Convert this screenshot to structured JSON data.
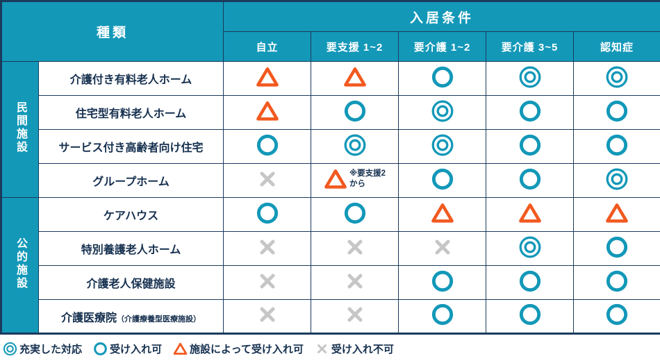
{
  "chart_data": {
    "type": "table",
    "header": {
      "type_label": "種類",
      "conditions_label": "入居条件",
      "condition_columns": [
        "自立",
        "要支援 1~2",
        "要介護 1~2",
        "要介護 3~5",
        "認知症"
      ]
    },
    "groups": [
      {
        "label": "民間施設",
        "row_span": 4
      },
      {
        "label": "公的施設",
        "row_span": 4
      }
    ],
    "rows": [
      {
        "name": "介護付き有料老人ホーム",
        "name_sub": "",
        "group": "民間施設",
        "cells": [
          "triangle",
          "triangle",
          "circle",
          "double-circle",
          "double-circle"
        ]
      },
      {
        "name": "住宅型有料老人ホーム",
        "name_sub": "",
        "group": "民間施設",
        "cells": [
          "triangle",
          "circle",
          "double-circle",
          "circle",
          "circle"
        ]
      },
      {
        "name": "サービス付き高齢者向け住宅",
        "name_sub": "",
        "group": "民間施設",
        "cells": [
          "circle",
          "double-circle",
          "double-circle",
          "circle",
          "circle"
        ]
      },
      {
        "name": "グループホーム",
        "name_sub": "",
        "group": "民間施設",
        "cells": [
          "cross",
          "triangle",
          "circle",
          "circle",
          "double-circle"
        ],
        "note": "※要支援2\nから",
        "note_col": 1
      },
      {
        "name": "ケアハウス",
        "name_sub": "",
        "group": "公的施設",
        "cells": [
          "circle",
          "circle",
          "triangle",
          "triangle",
          "triangle"
        ]
      },
      {
        "name": "特別養護老人ホーム",
        "name_sub": "",
        "group": "公的施設",
        "cells": [
          "cross",
          "cross",
          "cross",
          "double-circle",
          "circle"
        ]
      },
      {
        "name": "介護老人保健施設",
        "name_sub": "",
        "group": "公的施設",
        "cells": [
          "cross",
          "cross",
          "circle",
          "circle",
          "circle"
        ]
      },
      {
        "name": "介護医療院",
        "name_sub": "（介護療養型医療施設）",
        "group": "公的施設",
        "cells": [
          "cross",
          "cross",
          "circle",
          "circle",
          "circle"
        ]
      }
    ],
    "legend": [
      {
        "symbol": "double-circle",
        "label": "充実した対応"
      },
      {
        "symbol": "circle",
        "label": "受け入れ可"
      },
      {
        "symbol": "triangle",
        "label": "施設によって受け入れ可"
      },
      {
        "symbol": "cross",
        "label": "受け入れ不可"
      }
    ],
    "symbol_meanings": {
      "double-circle": "充実した対応",
      "circle": "受け入れ可",
      "triangle": "施設によって受け入れ可",
      "cross": "受け入れ不可"
    }
  },
  "colors": {
    "teal": "#1398B8",
    "orange": "#F2591F",
    "gray": "#C6C6C6",
    "navy": "#1B3A5C"
  }
}
